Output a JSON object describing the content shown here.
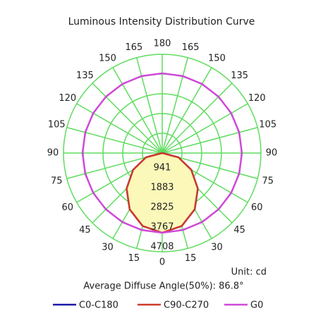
{
  "chart_data": {
    "type": "polar",
    "title": "Luminous Intensity Distribution Curve",
    "angles": [
      0,
      15,
      30,
      45,
      60,
      75,
      90,
      105,
      120,
      135,
      150,
      165,
      180
    ],
    "rlim": [
      0,
      4708
    ],
    "rticks": [
      941,
      1883,
      2825,
      3767,
      4708
    ],
    "grid_color": "#5fdc5f",
    "fill_color": "#fbf8b8",
    "annotations": [
      "Unit: cd",
      "Average Diffuse Angle(50%): 86.8°"
    ],
    "series": [
      {
        "name": "C0-C180",
        "color": "#1a1aa8",
        "values": [
          3800,
          3600,
          3100,
          2400,
          1600,
          800,
          0,
          0,
          0,
          0,
          0,
          0,
          0
        ]
      },
      {
        "name": "C90-C270",
        "color": "#cc3a2a",
        "values": [
          3800,
          3600,
          3100,
          2400,
          1600,
          800,
          0,
          0,
          0,
          0,
          0,
          0,
          0
        ]
      },
      {
        "name": "G0",
        "color": "#d048d8",
        "values": [
          3800,
          3800,
          3800,
          3800,
          3800,
          3800,
          3800,
          3800,
          3800,
          3800,
          3800,
          3800,
          3800
        ]
      }
    ]
  }
}
